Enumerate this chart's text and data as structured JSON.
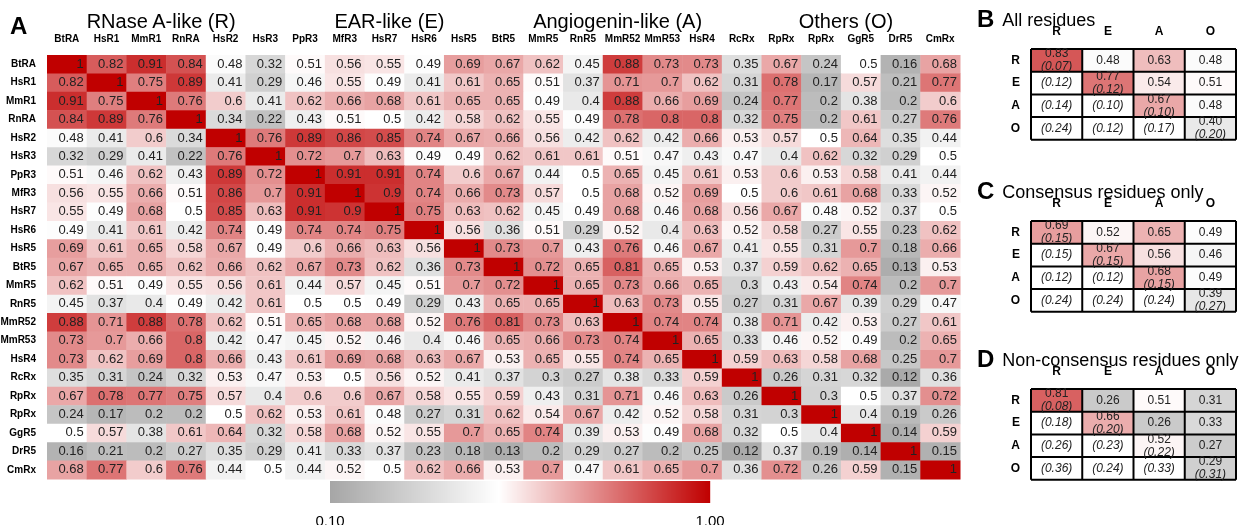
{
  "chart_data": [
    {
      "type": "heatmap",
      "title": "A",
      "data_labels": true,
      "clim": [
        0.1,
        1
      ],
      "cticks": [
        {
          "value": 0.1,
          "label": "0.10"
        },
        {
          "value": 1,
          "label": "1.00"
        }
      ],
      "annotations": [
        "RNase A-like (R)",
        "EAR-like (E)",
        "Angiogenin-like (A)",
        "Others (O)"
      ],
      "categories": [
        "BtRA",
        "HsR1",
        "MmR1",
        "RnRA",
        "HsR2",
        "HsR3",
        "PpR3",
        "MfR3",
        "HsR7",
        "HsR6",
        "HsR5",
        "BtR5",
        "MmR5",
        "RnR5",
        "MmR52",
        "MmR53",
        "HsR4",
        "RcRx",
        "RpRx",
        "RpRx",
        "GgR5",
        "DrR5",
        "CmRx"
      ],
      "y_categories": [
        "BtRA",
        "HsR1",
        "MmR1",
        "RnRA",
        "HsR2",
        "HsR3",
        "PpR3",
        "MfR3",
        "HsR7",
        "HsR6",
        "HsR5",
        "BtR5",
        "MmR5",
        "RnR5",
        "MmR52",
        "MmR53",
        "HsR4",
        "RcRx",
        "RpRx",
        "RpRx",
        "GgR5",
        "DrR5",
        "CmRx"
      ],
      "cells": [
        [
          1,
          0.82,
          0.91,
          0.84,
          0.48,
          0.32,
          0.51,
          0.56,
          0.55,
          0.49,
          0.69,
          0.67,
          0.62,
          0.45,
          0.88,
          0.73,
          0.73,
          0.35,
          0.67,
          0.24,
          0.5,
          0.16,
          0.68
        ],
        [
          0.82,
          1,
          0.75,
          0.89,
          0.41,
          0.29,
          0.46,
          0.55,
          0.49,
          0.41,
          0.61,
          0.65,
          0.51,
          0.37,
          0.71,
          0.7,
          0.62,
          0.31,
          0.78,
          0.17,
          0.57,
          0.21,
          0.77
        ],
        [
          0.91,
          0.75,
          1,
          0.76,
          0.6,
          0.41,
          0.62,
          0.66,
          0.68,
          0.61,
          0.65,
          0.65,
          0.49,
          0.4,
          0.88,
          0.66,
          0.69,
          0.24,
          0.77,
          0.2,
          0.38,
          0.2,
          0.6
        ],
        [
          0.84,
          0.89,
          0.76,
          1,
          0.34,
          0.22,
          0.43,
          0.51,
          0.5,
          0.42,
          0.58,
          0.62,
          0.55,
          0.49,
          0.78,
          0.8,
          0.8,
          0.32,
          0.75,
          0.2,
          0.61,
          0.27,
          0.76
        ],
        [
          0.48,
          0.41,
          0.6,
          0.34,
          1,
          0.76,
          0.89,
          0.86,
          0.85,
          0.74,
          0.67,
          0.66,
          0.56,
          0.42,
          0.62,
          0.42,
          0.66,
          0.53,
          0.57,
          0.5,
          0.64,
          0.35,
          0.44
        ],
        [
          0.32,
          0.29,
          0.41,
          0.22,
          0.76,
          1,
          0.72,
          0.7,
          0.63,
          0.49,
          0.49,
          0.62,
          0.61,
          0.61,
          0.51,
          0.47,
          0.43,
          0.47,
          0.4,
          0.62,
          0.32,
          0.29,
          0.5
        ],
        [
          0.51,
          0.46,
          0.62,
          0.43,
          0.89,
          0.72,
          1,
          0.91,
          0.91,
          0.74,
          0.6,
          0.67,
          0.44,
          0.5,
          0.65,
          0.45,
          0.61,
          0.53,
          0.6,
          0.53,
          0.58,
          0.41,
          0.44
        ],
        [
          0.56,
          0.55,
          0.66,
          0.51,
          0.86,
          0.7,
          0.91,
          1,
          0.9,
          0.74,
          0.66,
          0.73,
          0.57,
          0.5,
          0.68,
          0.52,
          0.69,
          0.5,
          0.6,
          0.61,
          0.68,
          0.33,
          0.52
        ],
        [
          0.55,
          0.49,
          0.68,
          0.5,
          0.85,
          0.63,
          0.91,
          0.9,
          1,
          0.75,
          0.63,
          0.62,
          0.45,
          0.49,
          0.68,
          0.46,
          0.68,
          0.56,
          0.67,
          0.48,
          0.52,
          0.37,
          0.5
        ],
        [
          0.49,
          0.41,
          0.61,
          0.42,
          0.74,
          0.49,
          0.74,
          0.74,
          0.75,
          1,
          0.56,
          0.36,
          0.51,
          0.29,
          0.52,
          0.4,
          0.63,
          0.52,
          0.58,
          0.27,
          0.55,
          0.23,
          0.62
        ],
        [
          0.69,
          0.61,
          0.65,
          0.58,
          0.67,
          0.49,
          0.6,
          0.66,
          0.63,
          0.56,
          1,
          0.73,
          0.7,
          0.43,
          0.76,
          0.46,
          0.67,
          0.41,
          0.55,
          0.31,
          0.7,
          0.18,
          0.66
        ],
        [
          0.67,
          0.65,
          0.65,
          0.62,
          0.66,
          0.62,
          0.67,
          0.73,
          0.62,
          0.36,
          0.73,
          1,
          0.72,
          0.65,
          0.81,
          0.65,
          0.53,
          0.37,
          0.59,
          0.62,
          0.65,
          0.13,
          0.53
        ],
        [
          0.62,
          0.51,
          0.49,
          0.55,
          0.56,
          0.61,
          0.44,
          0.57,
          0.45,
          0.51,
          0.7,
          0.72,
          1,
          0.65,
          0.73,
          0.66,
          0.65,
          0.3,
          0.43,
          0.54,
          0.74,
          0.2,
          0.7
        ],
        [
          0.45,
          0.37,
          0.4,
          0.49,
          0.42,
          0.61,
          0.5,
          0.5,
          0.49,
          0.29,
          0.43,
          0.65,
          0.65,
          1,
          0.63,
          0.73,
          0.55,
          0.27,
          0.31,
          0.67,
          0.39,
          0.29,
          0.47
        ],
        [
          0.88,
          0.71,
          0.88,
          0.78,
          0.62,
          0.51,
          0.65,
          0.68,
          0.68,
          0.52,
          0.76,
          0.81,
          0.73,
          0.63,
          1,
          0.74,
          0.74,
          0.38,
          0.71,
          0.42,
          0.53,
          0.27,
          0.61
        ],
        [
          0.73,
          0.7,
          0.66,
          0.8,
          0.42,
          0.47,
          0.45,
          0.52,
          0.46,
          0.4,
          0.46,
          0.65,
          0.66,
          0.73,
          0.74,
          1,
          0.65,
          0.33,
          0.46,
          0.52,
          0.49,
          0.2,
          0.65
        ],
        [
          0.73,
          0.62,
          0.69,
          0.8,
          0.66,
          0.43,
          0.61,
          0.69,
          0.68,
          0.63,
          0.67,
          0.53,
          0.65,
          0.55,
          0.74,
          0.65,
          1,
          0.59,
          0.63,
          0.58,
          0.68,
          0.25,
          0.7
        ],
        [
          0.35,
          0.31,
          0.24,
          0.32,
          0.53,
          0.47,
          0.53,
          0.5,
          0.56,
          0.52,
          0.41,
          0.37,
          0.3,
          0.27,
          0.38,
          0.33,
          0.59,
          1,
          0.26,
          0.31,
          0.32,
          0.12,
          0.36
        ],
        [
          0.67,
          0.78,
          0.77,
          0.75,
          0.57,
          0.4,
          0.6,
          0.6,
          0.67,
          0.58,
          0.55,
          0.59,
          0.43,
          0.31,
          0.71,
          0.46,
          0.63,
          0.26,
          1,
          0.3,
          0.5,
          0.37,
          0.72
        ],
        [
          0.24,
          0.17,
          0.2,
          0.2,
          0.5,
          0.62,
          0.53,
          0.61,
          0.48,
          0.27,
          0.31,
          0.62,
          0.54,
          0.67,
          0.42,
          0.52,
          0.58,
          0.31,
          0.3,
          1,
          0.4,
          0.19,
          0.26
        ],
        [
          0.5,
          0.57,
          0.38,
          0.61,
          0.64,
          0.32,
          0.58,
          0.68,
          0.52,
          0.55,
          0.7,
          0.65,
          0.74,
          0.39,
          0.53,
          0.49,
          0.68,
          0.32,
          0.5,
          0.4,
          1,
          0.14,
          0.59
        ],
        [
          0.16,
          0.21,
          0.2,
          0.27,
          0.35,
          0.29,
          0.41,
          0.33,
          0.37,
          0.23,
          0.18,
          0.13,
          0.2,
          0.29,
          0.27,
          0.2,
          0.25,
          0.12,
          0.37,
          0.19,
          0.14,
          1,
          0.15
        ],
        [
          0.68,
          0.77,
          0.6,
          0.76,
          0.44,
          0.5,
          0.44,
          0.52,
          0.5,
          0.62,
          0.66,
          0.53,
          0.7,
          0.47,
          0.61,
          0.65,
          0.7,
          0.36,
          0.72,
          0.26,
          0.59,
          0.15,
          1
        ]
      ]
    },
    {
      "type": "heatmap",
      "title": "B",
      "subtitle": "All residues",
      "grid": true,
      "categories": [
        "R",
        "E",
        "A",
        "O"
      ],
      "y_categories": [
        "R",
        "E",
        "A",
        "O"
      ],
      "cells": [
        [
          0.83,
          0.48,
          0.63,
          0.48
        ],
        [
          null,
          0.77,
          0.54,
          0.51
        ],
        [
          null,
          null,
          0.67,
          0.48
        ],
        [
          null,
          null,
          null,
          0.4
        ]
      ],
      "cell_labels": [
        [
          "0.83",
          "0.48",
          "0.63",
          "0.48"
        ],
        [
          "(0.12)",
          "0.77",
          "0.54",
          "0.51"
        ],
        [
          "(0.14)",
          "(0.10)",
          "0.67",
          "0.48"
        ],
        [
          "(0.24)",
          "(0.12)",
          "(0.17)",
          "0.40"
        ]
      ],
      "annotations": [
        "(0.07)",
        "(0.12)",
        "(0.10)",
        "(0.20)"
      ]
    },
    {
      "type": "heatmap",
      "title": "C",
      "subtitle": "Consensus residues only",
      "grid": true,
      "categories": [
        "R",
        "E",
        "A",
        "O"
      ],
      "y_categories": [
        "R",
        "E",
        "A",
        "O"
      ],
      "cells": [
        [
          0.69,
          0.52,
          0.65,
          0.49
        ],
        [
          null,
          0.67,
          0.56,
          0.46
        ],
        [
          null,
          null,
          0.68,
          0.49
        ],
        [
          null,
          null,
          null,
          0.39
        ]
      ],
      "cell_labels": [
        [
          "0.69",
          "0.52",
          "0.65",
          "0.49"
        ],
        [
          "(0.15)",
          "0.67",
          "0.56",
          "0.46"
        ],
        [
          "(0.12)",
          "(0.12)",
          "0.68",
          "0.49"
        ],
        [
          "(0.24)",
          "(0.24)",
          "(0.24)",
          "0.39"
        ]
      ],
      "annotations": [
        "(0.15)",
        "(0.15)",
        "(0.15)",
        "(0.27)"
      ]
    },
    {
      "type": "heatmap",
      "title": "D",
      "subtitle": "Non-consensus residues only",
      "grid": true,
      "categories": [
        "R",
        "E",
        "A",
        "O"
      ],
      "y_categories": [
        "R",
        "E",
        "A",
        "O"
      ],
      "cells": [
        [
          0.81,
          0.26,
          0.51,
          0.31
        ],
        [
          null,
          0.66,
          0.26,
          0.33
        ],
        [
          null,
          null,
          0.52,
          0.27
        ],
        [
          null,
          null,
          null,
          0.29
        ]
      ],
      "cell_labels": [
        [
          "0.81",
          "0.26",
          "0.51",
          "0.31"
        ],
        [
          "(0.18)",
          "0.66",
          "0.26",
          "0.33"
        ],
        [
          "(0.26)",
          "(0.23)",
          "0.52",
          "0.27"
        ],
        [
          "(0.36)",
          "(0.24)",
          "(0.33)",
          "0.29"
        ]
      ],
      "annotations": [
        "(0.08)",
        "(0.20)",
        "(0.22)",
        "(0.31)"
      ]
    }
  ]
}
